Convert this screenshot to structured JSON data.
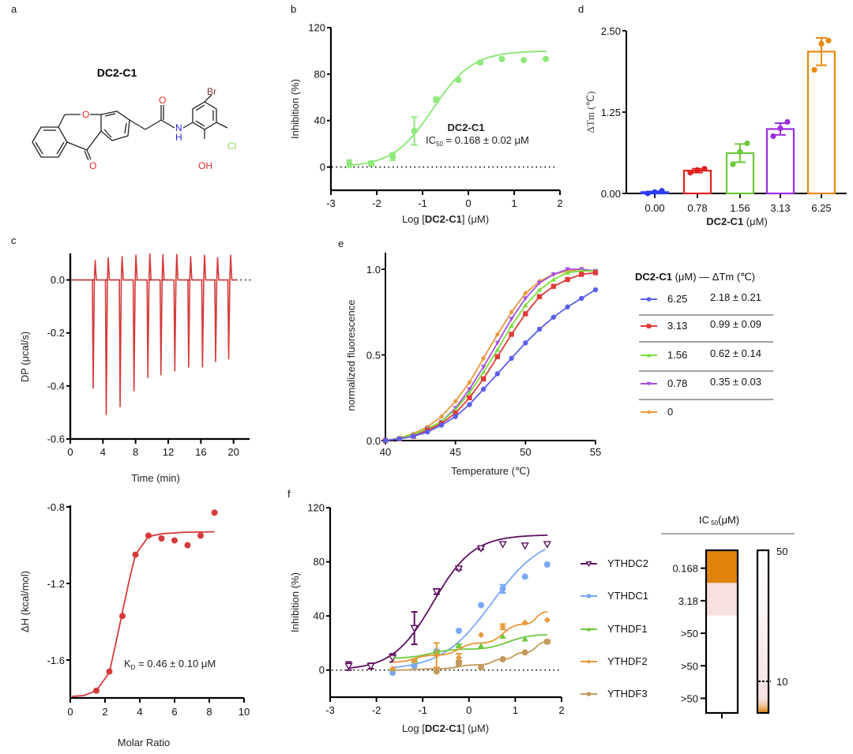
{
  "panel_labels": {
    "a": "a",
    "b": "b",
    "c": "c",
    "d": "d",
    "e": "e",
    "f": "f"
  },
  "structure": {
    "title": "DC2-C1",
    "atoms": {
      "O_ring": "O",
      "O_ketone": "O",
      "O_amide": "O",
      "N": "N",
      "H": "H",
      "Br": "Br",
      "Cl": "Cl",
      "OH": "OH"
    },
    "colors": {
      "O": "#e0282b",
      "N": "#2b2bd9",
      "Br": "#8a3a3a",
      "Cl": "#7fd94a",
      "bond": "#222222"
    }
  },
  "chart_data": [
    {
      "id": "b",
      "type": "scatter",
      "title": "DC2-C1",
      "annotation": {
        "prefix": "IC",
        "sub": "50",
        "suffix": " = 0.168 ±  0.02 μM"
      },
      "xlabel_parts": [
        "Log [",
        "DC2-C1",
        "] (μM)"
      ],
      "ylabel": "Inhibition (%)",
      "xlim": [
        -3,
        2
      ],
      "ylim": [
        -20,
        120
      ],
      "xticks": [
        -3,
        -2,
        -1,
        0,
        1,
        2
      ],
      "yticks": [
        0,
        40,
        80,
        120
      ],
      "xtick_labels": [
        "-3",
        "-2",
        "-1",
        "0",
        "1",
        "2"
      ],
      "ytick_labels": [
        "0",
        "40",
        "80",
        "120"
      ],
      "color": "#8ee87a",
      "fit": {
        "model": "hill",
        "bottom": 0,
        "top": 100,
        "logIC50": -0.775,
        "hill": 1
      },
      "points": [
        {
          "x": -2.6,
          "y": 3,
          "err": 3
        },
        {
          "x": -2.12,
          "y": 3,
          "err": 2
        },
        {
          "x": -1.65,
          "y": 9,
          "err": 3
        },
        {
          "x": -1.18,
          "y": 31,
          "err": 12
        },
        {
          "x": -0.7,
          "y": 58,
          "err": 2
        },
        {
          "x": -0.22,
          "y": 75,
          "err": 1
        },
        {
          "x": 0.26,
          "y": 90,
          "err": 1
        },
        {
          "x": 0.73,
          "y": 93,
          "err": 0
        },
        {
          "x": 1.21,
          "y": 92,
          "err": 0
        },
        {
          "x": 1.69,
          "y": 93,
          "err": 0
        }
      ],
      "reference_line": 0
    },
    {
      "id": "d",
      "type": "bar",
      "xlabel_parts": [
        "DC2-C1",
        " (μM)"
      ],
      "ylabel": "ΔTm (℃)",
      "ylim": [
        0,
        2.5
      ],
      "yticks": [
        0,
        1.25,
        2.5
      ],
      "ytick_labels": [
        "0.00",
        "1.25",
        "2.50"
      ],
      "categories": [
        "0.00",
        "0.78",
        "1.56",
        "3.13",
        "6.25"
      ],
      "values": [
        0.02,
        0.35,
        0.62,
        0.99,
        2.18
      ],
      "errors": [
        0.01,
        0.03,
        0.14,
        0.09,
        0.21
      ],
      "replicates": [
        [
          0.0,
          0.02,
          0.04
        ],
        [
          0.32,
          0.36,
          0.38
        ],
        [
          0.45,
          0.64,
          0.77
        ],
        [
          0.88,
          1.0,
          1.1
        ],
        [
          1.9,
          2.3,
          2.35
        ]
      ],
      "colors": [
        "#2b3bf0",
        "#e02020",
        "#6cc93a",
        "#9b2fe0",
        "#e8890c"
      ]
    },
    {
      "id": "c_top",
      "type": "line",
      "xlabel": "Time (min)",
      "ylabel": "DP (μcal/s)",
      "xlim": [
        0,
        21
      ],
      "ylim": [
        -0.6,
        0.1
      ],
      "xticks": [
        0,
        4,
        8,
        12,
        16,
        20
      ],
      "yticks": [
        0,
        -0.2,
        -0.4,
        -0.6
      ],
      "xtick_labels": [
        "0",
        "4",
        "8",
        "12",
        "16",
        "20"
      ],
      "ytick_labels": [
        "0.0",
        "-0.2",
        "-0.4",
        "-0.6"
      ],
      "color": "#d63a3a",
      "injections": [
        {
          "t": 2.9,
          "up": 0.075,
          "down": -0.41
        },
        {
          "t": 4.5,
          "up": 0.085,
          "down": -0.51
        },
        {
          "t": 6.2,
          "up": 0.09,
          "down": -0.48
        },
        {
          "t": 7.9,
          "up": 0.095,
          "down": -0.42
        },
        {
          "t": 9.6,
          "up": 0.1,
          "down": -0.37
        },
        {
          "t": 11.2,
          "up": 0.097,
          "down": -0.36
        },
        {
          "t": 12.9,
          "up": 0.098,
          "down": -0.345
        },
        {
          "t": 14.6,
          "up": 0.09,
          "down": -0.33
        },
        {
          "t": 16.3,
          "up": 0.095,
          "down": -0.33
        },
        {
          "t": 17.9,
          "up": 0.085,
          "down": -0.31
        },
        {
          "t": 19.5,
          "up": 0.095,
          "down": -0.3
        }
      ],
      "reference_line": 0
    },
    {
      "id": "c_bottom",
      "type": "scatter",
      "xlabel": "Molar Ratio",
      "ylabel": "ΔH (kcal/mol)",
      "annotation": {
        "prefix": "K",
        "sub": "D",
        "suffix": " = 0.46 ± 0.10 μM"
      },
      "xlim": [
        0,
        10
      ],
      "ylim": [
        -1.8,
        -0.8
      ],
      "xticks": [
        0,
        2,
        4,
        6,
        8,
        10
      ],
      "yticks": [
        -0.8,
        -1.2,
        -1.6
      ],
      "xtick_labels": [
        "0",
        "2",
        "4",
        "6",
        "8",
        "10"
      ],
      "ytick_labels": [
        "-0.8",
        "-1.2",
        "-1.6"
      ],
      "color": "#d63a3a",
      "points": [
        {
          "x": 1.5,
          "y": -1.76
        },
        {
          "x": 2.25,
          "y": -1.66
        },
        {
          "x": 3.0,
          "y": -1.37
        },
        {
          "x": 3.75,
          "y": -1.05
        },
        {
          "x": 4.5,
          "y": -0.95
        },
        {
          "x": 5.25,
          "y": -0.965
        },
        {
          "x": 6.0,
          "y": -0.975
        },
        {
          "x": 6.75,
          "y": -1.0
        },
        {
          "x": 7.5,
          "y": -0.95
        },
        {
          "x": 8.3,
          "y": -0.83
        }
      ],
      "fit": [
        {
          "x": 0.1,
          "y": -1.79
        },
        {
          "x": 0.8,
          "y": -1.785
        },
        {
          "x": 1.5,
          "y": -1.76
        },
        {
          "x": 2.25,
          "y": -1.665
        },
        {
          "x": 2.6,
          "y": -1.52
        },
        {
          "x": 3.0,
          "y": -1.35
        },
        {
          "x": 3.4,
          "y": -1.18
        },
        {
          "x": 3.75,
          "y": -1.05
        },
        {
          "x": 4.5,
          "y": -0.955
        },
        {
          "x": 5.3,
          "y": -0.94
        },
        {
          "x": 6.5,
          "y": -0.933
        },
        {
          "x": 8.3,
          "y": -0.93
        }
      ]
    },
    {
      "id": "e",
      "type": "line",
      "xlabel": "Temperature (℃)",
      "ylabel": "normalized fluorescence",
      "xlim": [
        40,
        55
      ],
      "ylim": [
        0,
        1.07
      ],
      "xticks": [
        40,
        45,
        50,
        55
      ],
      "yticks": [
        0,
        0.5,
        1.0
      ],
      "xtick_labels": [
        "40",
        "45",
        "50",
        "55"
      ],
      "ytick_labels": [
        "0.0",
        "0.5",
        "1.0"
      ],
      "x": [
        40,
        41,
        42,
        43,
        44,
        45,
        46,
        47,
        48,
        49,
        50,
        51,
        52,
        53,
        54,
        55
      ],
      "series": [
        {
          "name": "6.25",
          "dTm": "2.18 ± 0.21",
          "color": "#5a5ff0",
          "marker": "circle",
          "values": [
            0,
            0.01,
            0.025,
            0.05,
            0.09,
            0.14,
            0.21,
            0.3,
            0.39,
            0.48,
            0.57,
            0.65,
            0.72,
            0.78,
            0.83,
            0.88
          ]
        },
        {
          "name": "3.13",
          "dTm": "0.99 ± 0.09",
          "color": "#e03a3a",
          "marker": "square",
          "values": [
            0,
            0.01,
            0.025,
            0.06,
            0.1,
            0.16,
            0.25,
            0.36,
            0.49,
            0.62,
            0.74,
            0.84,
            0.9,
            0.94,
            0.97,
            0.98
          ]
        },
        {
          "name": "1.56",
          "dTm": "0.62 ± 0.14",
          "color": "#7ae03a",
          "marker": "triangle-up",
          "values": [
            0,
            0.015,
            0.035,
            0.07,
            0.11,
            0.18,
            0.28,
            0.4,
            0.53,
            0.67,
            0.79,
            0.88,
            0.94,
            0.98,
            0.99,
            0.99
          ]
        },
        {
          "name": "0.78",
          "dTm": "0.35 ± 0.03",
          "color": "#a64fe6",
          "marker": "triangle-down",
          "values": [
            0,
            0.01,
            0.03,
            0.07,
            0.11,
            0.19,
            0.3,
            0.43,
            0.57,
            0.71,
            0.83,
            0.92,
            0.97,
            1.0,
            1.0,
            0.99
          ]
        },
        {
          "name": "0",
          "dTm": "",
          "color": "#e8983a",
          "marker": "diamond",
          "values": [
            0,
            0.015,
            0.04,
            0.08,
            0.14,
            0.23,
            0.34,
            0.48,
            0.62,
            0.75,
            0.86,
            0.93,
            0.97,
            0.99,
            1.0,
            0.99
          ]
        }
      ],
      "legend": {
        "title_bold": "DC2-C1",
        "title_rest": "(μM)  —  ΔTm (℃)",
        "placement": "right"
      }
    },
    {
      "id": "f",
      "type": "scatter",
      "xlabel_parts": [
        "Log [",
        "DC2-C1",
        "] (μM)"
      ],
      "ylabel": "Inhibition (%)",
      "xlim": [
        -3,
        2
      ],
      "ylim": [
        -20,
        120
      ],
      "xticks": [
        -3,
        -2,
        -1,
        0,
        1,
        2
      ],
      "yticks": [
        0,
        40,
        80,
        120
      ],
      "xtick_labels": [
        "-3",
        "-2",
        "-1",
        "0",
        "1",
        "2"
      ],
      "ytick_labels": [
        "0",
        "40",
        "80",
        "120"
      ],
      "reference_line": 0,
      "series": [
        {
          "name": "YTHDC2",
          "ic50": "0.168",
          "color": "#5e1060",
          "marker": "triangle-down-open",
          "fit": {
            "bottom": 0,
            "top": 100,
            "logIC50": -0.775,
            "hill": 1,
            "x0": -2.6
          },
          "points": [
            {
              "x": -2.6,
              "y": 3,
              "err": 3
            },
            {
              "x": -2.12,
              "y": 3,
              "err": 2
            },
            {
              "x": -1.65,
              "y": 9,
              "err": 3
            },
            {
              "x": -1.18,
              "y": 31,
              "err": 12
            },
            {
              "x": -0.7,
              "y": 58,
              "err": 2
            },
            {
              "x": -0.22,
              "y": 75,
              "err": 1
            },
            {
              "x": 0.26,
              "y": 90,
              "err": 1
            },
            {
              "x": 0.73,
              "y": 93,
              "err": 0
            },
            {
              "x": 1.21,
              "y": 92,
              "err": 0
            },
            {
              "x": 1.69,
              "y": 93,
              "err": 0
            }
          ]
        },
        {
          "name": "YTHDC1",
          "ic50": "3.18",
          "color": "#7aa8f5",
          "marker": "circle",
          "fit": {
            "bottom": 0,
            "top": 100,
            "logIC50": 0.5,
            "hill": 0.8,
            "x0": -1.65
          },
          "points": [
            {
              "x": -1.65,
              "y": -2,
              "err": 0
            },
            {
              "x": -1.18,
              "y": 3,
              "err": 0
            },
            {
              "x": -0.7,
              "y": 14,
              "err": 1
            },
            {
              "x": -0.22,
              "y": 29,
              "err": 0
            },
            {
              "x": 0.26,
              "y": 48,
              "err": 0
            },
            {
              "x": 0.73,
              "y": 60,
              "err": 3
            },
            {
              "x": 1.21,
              "y": 69,
              "err": 0
            },
            {
              "x": 1.69,
              "y": 78,
              "err": 0
            }
          ]
        },
        {
          "name": "YTHDF1",
          "ic50": ">50",
          "color": "#6cc93a",
          "marker": "triangle-up",
          "line": [
            {
              "x": -1.65,
              "y": 9
            },
            {
              "x": 0,
              "y": 15.5
            },
            {
              "x": 1.69,
              "y": 26
            }
          ],
          "points": [
            {
              "x": -1.65,
              "y": 1,
              "err": 0
            },
            {
              "x": -1.18,
              "y": 7,
              "err": 1
            },
            {
              "x": -0.7,
              "y": 13,
              "err": 1
            },
            {
              "x": -0.22,
              "y": 18,
              "err": 1
            },
            {
              "x": 0.26,
              "y": 18,
              "err": 0
            },
            {
              "x": 0.73,
              "y": 25,
              "err": 0
            },
            {
              "x": 1.21,
              "y": 23,
              "err": 0
            },
            {
              "x": 1.69,
              "y": 21,
              "err": 1
            }
          ]
        },
        {
          "name": "YTHDF2",
          "ic50": ">50",
          "color": "#e8983a",
          "marker": "diamond",
          "line": [
            {
              "x": -1.65,
              "y": 6
            },
            {
              "x": -0.7,
              "y": 11
            },
            {
              "x": 0.26,
              "y": 20
            },
            {
              "x": 1.21,
              "y": 34
            },
            {
              "x": 1.69,
              "y": 43
            }
          ],
          "points": [
            {
              "x": -1.65,
              "y": 1,
              "err": 0
            },
            {
              "x": -1.18,
              "y": 7,
              "err": 0
            },
            {
              "x": -0.7,
              "y": 11,
              "err": 9
            },
            {
              "x": -0.22,
              "y": 9,
              "err": 3
            },
            {
              "x": 0.26,
              "y": 26,
              "err": 0
            },
            {
              "x": 0.73,
              "y": 32,
              "err": 2
            },
            {
              "x": 1.21,
              "y": 35,
              "err": 0
            },
            {
              "x": 1.69,
              "y": 37,
              "err": 0
            }
          ]
        },
        {
          "name": "YTHDF3",
          "ic50": ">50",
          "color": "#c49a5a",
          "marker": "circle",
          "line": [
            {
              "x": -1.65,
              "y": 0
            },
            {
              "x": -0.7,
              "y": 1
            },
            {
              "x": 0.26,
              "y": 4
            },
            {
              "x": 0.73,
              "y": 8
            },
            {
              "x": 1.21,
              "y": 13
            },
            {
              "x": 1.69,
              "y": 21
            }
          ],
          "points": [
            {
              "x": -0.7,
              "y": -1,
              "err": 0
            },
            {
              "x": -0.22,
              "y": 5,
              "err": 2
            },
            {
              "x": 0.26,
              "y": 2,
              "err": 0
            },
            {
              "x": 0.73,
              "y": 8,
              "err": 0
            },
            {
              "x": 1.21,
              "y": 13,
              "err": 0
            },
            {
              "x": 1.69,
              "y": 21,
              "err": 1
            }
          ]
        }
      ],
      "ic50_header": {
        "prefix": "IC",
        "sub": "50",
        "suffix": "(μM)"
      },
      "heatmap": {
        "cells": [
          {
            "label": "0.168",
            "color": "#e0830a"
          },
          {
            "label": "3.18",
            "color": "#f6e0e0"
          },
          {
            "label": ">50",
            "color": "#ffffff"
          },
          {
            "label": ">50",
            "color": "#ffffff"
          },
          {
            "label": ">50",
            "color": "#ffffff"
          }
        ],
        "scale": {
          "max_label": "50",
          "mid_label": "10",
          "low_color": "#e0830a",
          "mid_color": "#f6e3e3",
          "high_color": "#ffffff"
        }
      }
    }
  ]
}
